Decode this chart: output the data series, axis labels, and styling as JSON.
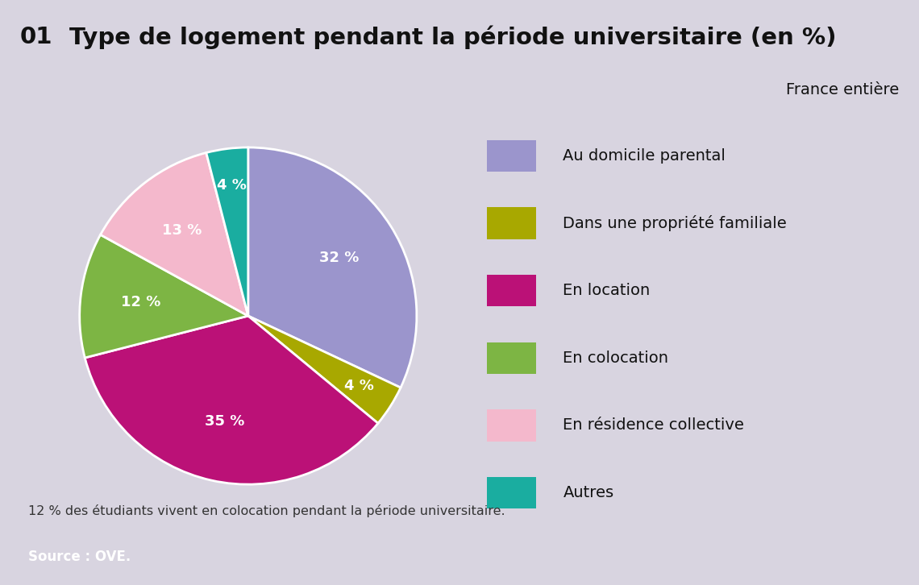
{
  "title_number": "01",
  "title_text": "Type de logement pendant la période universitaire (en %)",
  "subtitle": "France entière",
  "labels": [
    "Au domicile parental",
    "Dans une propriété familiale",
    "En location",
    "En colocation",
    "En résidence collective",
    "Autres"
  ],
  "values": [
    32,
    4,
    35,
    12,
    13,
    4
  ],
  "colors": [
    "#9b95cc",
    "#a8a800",
    "#bb1177",
    "#7db544",
    "#f4b8cc",
    "#1aada0"
  ],
  "pct_labels": [
    "32 %",
    "4 %",
    "35 %",
    "12 %",
    "13 %",
    "4 %"
  ],
  "note": "12 % des étudiants vivent en colocation pendant la période universitaire.",
  "source": "Source : OVE.",
  "background_outer": "#d8d4e0",
  "background_inner": "#ffffff",
  "source_bg": "#8880bb",
  "title_fontsize": 21,
  "subtitle_fontsize": 14,
  "legend_fontsize": 14,
  "note_fontsize": 11.5,
  "source_fontsize": 12
}
